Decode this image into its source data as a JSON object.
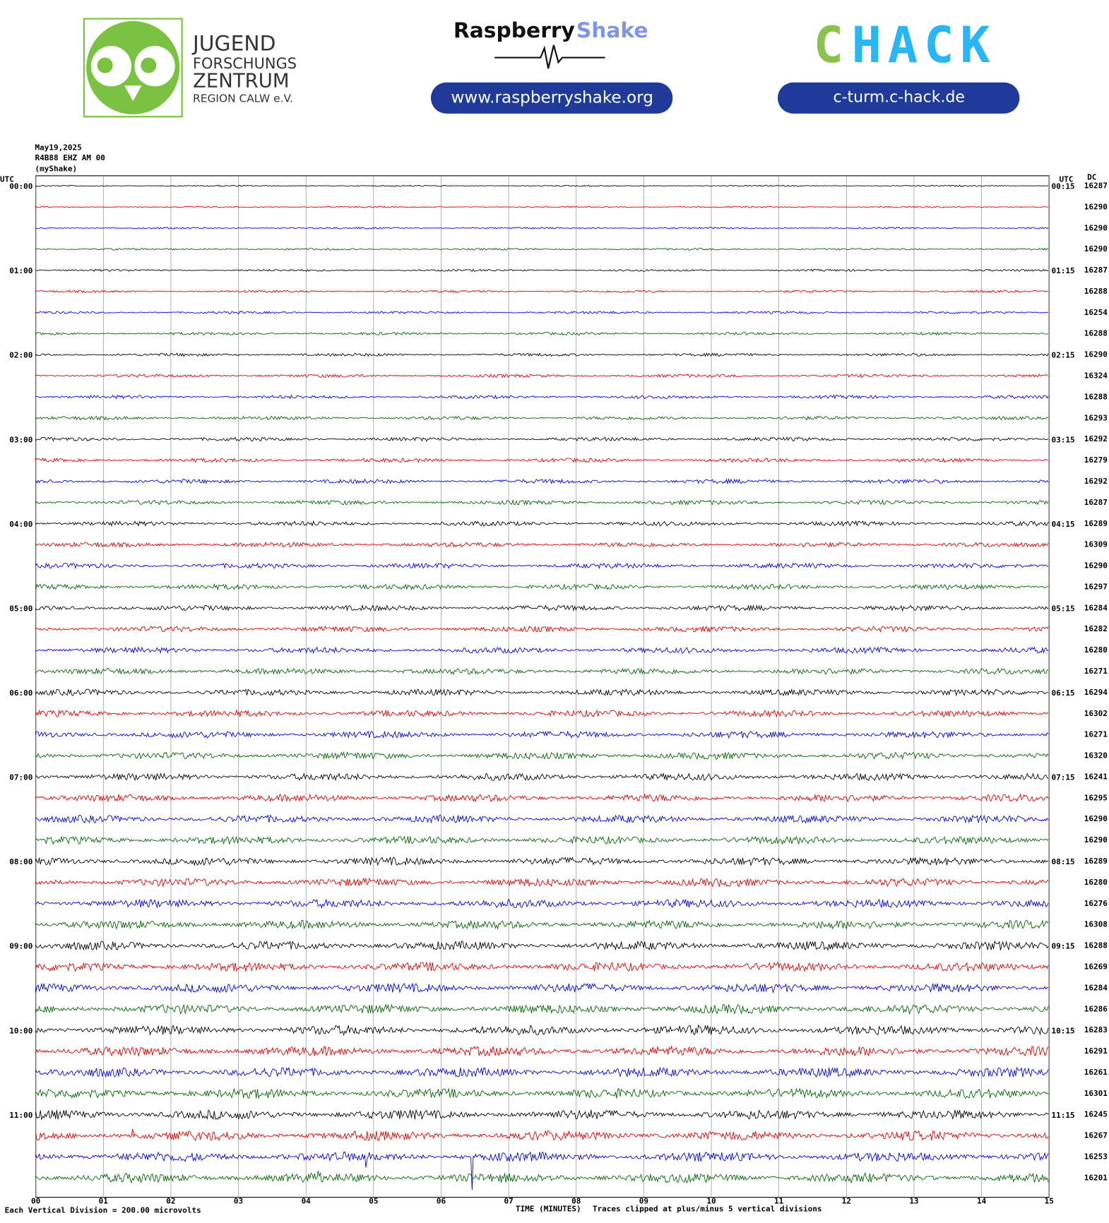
{
  "header": {
    "org_lines": [
      "JUGEND",
      "FORSCHUNGS",
      "ZENTRUM",
      "REGION CALW e.V."
    ],
    "rs_word1": "Raspberry",
    "rs_word2": "Shake",
    "rs_url": "www.raspberryshake.org",
    "chack_c": "C",
    "chack_rest": "HACK",
    "chack_url": "c-turm.c-hack.de"
  },
  "chart_data": {
    "type": "helicorder",
    "date": "May19,2025",
    "station": "R4B88 EHZ AM 00",
    "source": "(myShake)",
    "left_unit": "UTC",
    "right_unit": "UTC",
    "dc_title": "DC",
    "left_labels": [
      "00:00",
      "01:00",
      "02:00",
      "03:00",
      "04:00",
      "05:00",
      "06:00",
      "07:00",
      "08:00",
      "09:00",
      "10:00",
      "11:00"
    ],
    "right_labels": [
      "00:15",
      "01:15",
      "02:15",
      "03:15",
      "04:15",
      "05:15",
      "06:15",
      "07:15",
      "08:15",
      "09:15",
      "10:15",
      "11:15"
    ],
    "dc": [
      16287,
      16290,
      16290,
      16290,
      16287,
      16288,
      16254,
      16288,
      16290,
      16324,
      16288,
      16293,
      16292,
      16279,
      16292,
      16287,
      16289,
      16309,
      16290,
      16297,
      16284,
      16282,
      16280,
      16271,
      16294,
      16302,
      16271,
      16320,
      16241,
      16295,
      16290,
      16290,
      16289,
      16280,
      16276,
      16308,
      16288,
      16269,
      16284,
      16286,
      16283,
      16291,
      16261,
      16301,
      16245,
      16267,
      16253,
      16201
    ],
    "colors": [
      "#000000",
      "#e00000",
      "#0000e0",
      "#006400"
    ],
    "xlim": [
      0,
      15
    ],
    "xticks": [
      {
        "value": 0,
        "label": "00"
      },
      {
        "value": 1,
        "label": "01"
      },
      {
        "value": 2,
        "label": "02"
      },
      {
        "value": 3,
        "label": "03"
      },
      {
        "value": 4,
        "label": "04"
      },
      {
        "value": 5,
        "label": "05"
      },
      {
        "value": 6,
        "label": "06"
      },
      {
        "value": 7,
        "label": "07"
      },
      {
        "value": 8,
        "label": "08"
      },
      {
        "value": 9,
        "label": "09"
      },
      {
        "value": 10,
        "label": "10"
      },
      {
        "value": 11,
        "label": "11"
      },
      {
        "value": 12,
        "label": "12"
      },
      {
        "value": 13,
        "label": "13"
      },
      {
        "value": 14,
        "label": "14"
      },
      {
        "value": 15,
        "label": "15"
      }
    ],
    "xlabel": "TIME (MINUTES)",
    "scale_note": "Each Vertical Division = 200.00 microvolts",
    "clip_note": "Traces clipped at plus/minus 5 vertical divisions"
  }
}
